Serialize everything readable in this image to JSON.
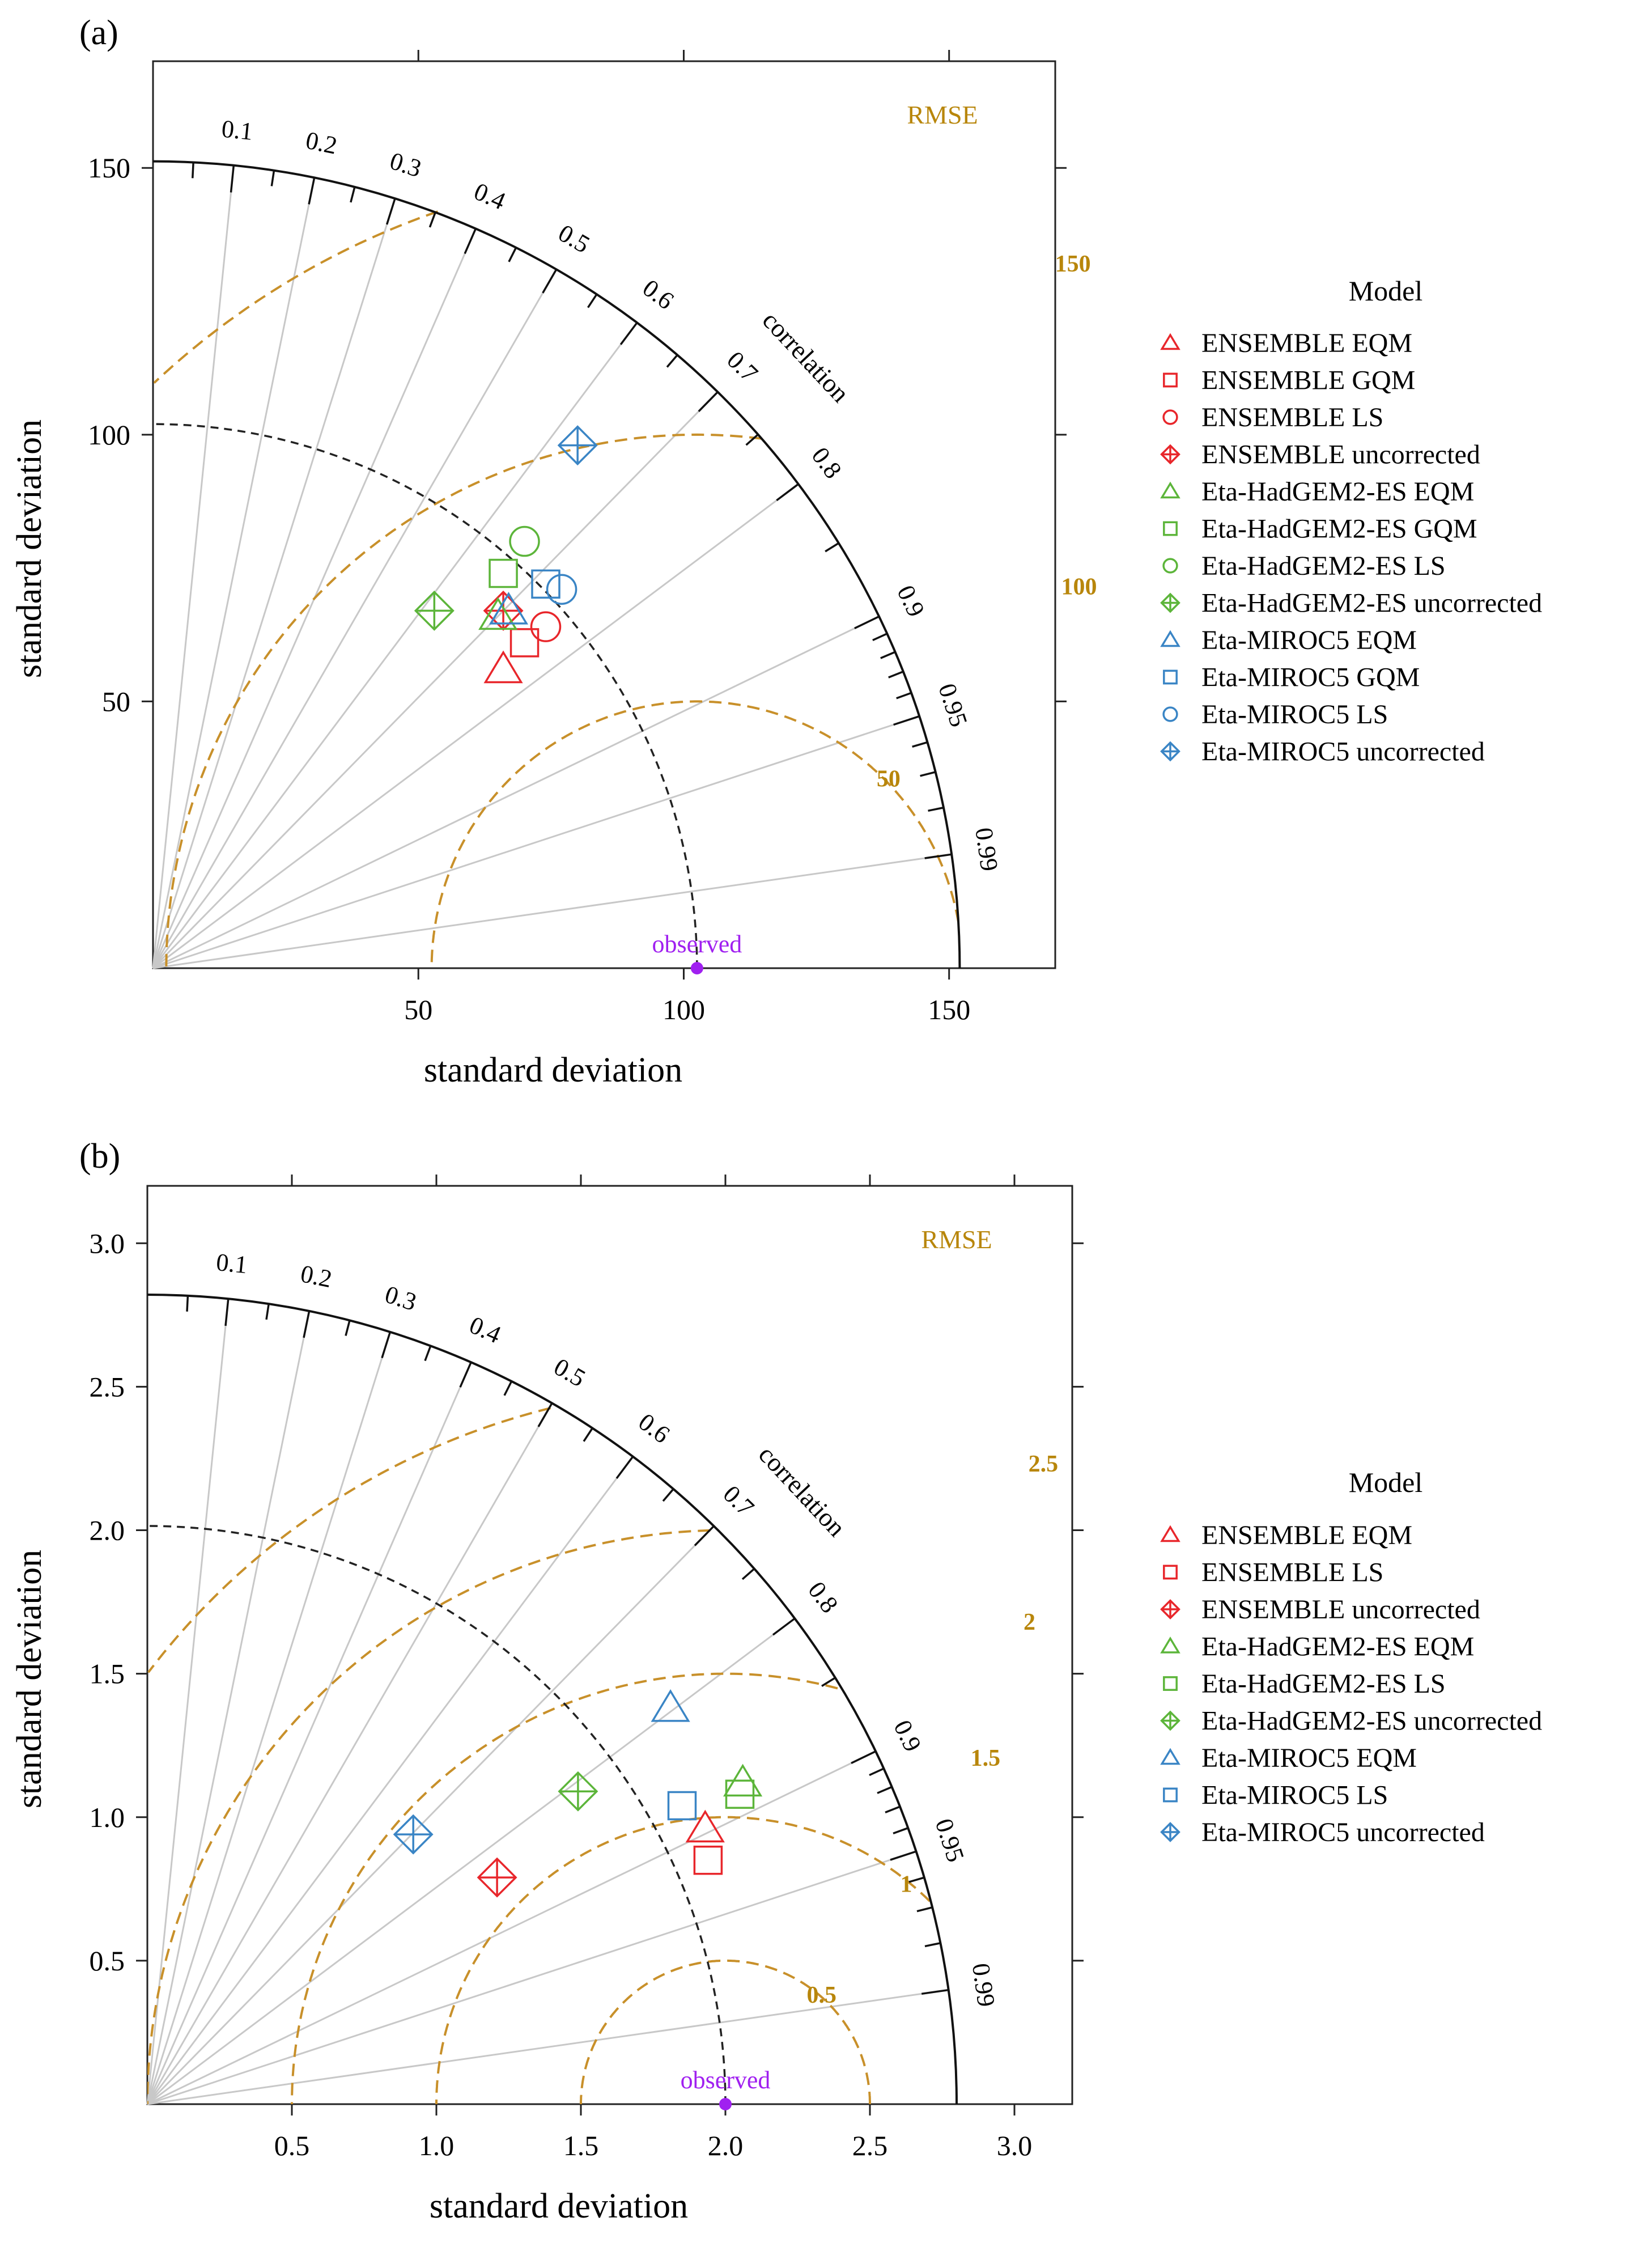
{
  "chart_data": [
    {
      "type": "scatter",
      "subtype": "taylor-diagram",
      "panel_label": "(a)",
      "xlabel": "standard deviation",
      "ylabel": "standard deviation",
      "axis_range": [
        0,
        170
      ],
      "ticks": [
        50,
        100,
        150
      ],
      "tick_labels": [
        "50",
        "100",
        "150"
      ],
      "max_sd_arc": 152,
      "correlation_title": "correlation",
      "correlations": [
        0.1,
        0.2,
        0.3,
        0.4,
        0.5,
        0.6,
        0.7,
        0.8,
        0.9,
        0.95,
        0.99
      ],
      "correlation_labels": [
        "0.1",
        "0.2",
        "0.3",
        "0.4",
        "0.5",
        "0.6",
        "0.7",
        "0.8",
        "0.9",
        "0.95",
        "0.99"
      ],
      "rmse_label": "RMSE",
      "rmse_contours": [
        50,
        100,
        150
      ],
      "rmse_labels": [
        "50",
        "100",
        "150"
      ],
      "observed": {
        "label": "observed",
        "sd": 102.5
      },
      "legend_title": "Model",
      "legend_placement": "right",
      "series": [
        {
          "name": "ENSEMBLE EQM",
          "marker": "triangle",
          "color": "#e8262b",
          "x": 66,
          "y": 56
        },
        {
          "name": "ENSEMBLE GQM",
          "marker": "square",
          "color": "#e8262b",
          "x": 70,
          "y": 61
        },
        {
          "name": "ENSEMBLE LS",
          "marker": "circle",
          "color": "#e8262b",
          "x": 74,
          "y": 64
        },
        {
          "name": "ENSEMBLE uncorrected",
          "marker": "diamond-plus",
          "color": "#e8262b",
          "x": 66,
          "y": 67
        },
        {
          "name": "Eta-HadGEM2-ES EQM",
          "marker": "triangle",
          "color": "#5cb53a",
          "x": 65,
          "y": 66
        },
        {
          "name": "Eta-HadGEM2-ES GQM",
          "marker": "square",
          "color": "#5cb53a",
          "x": 66,
          "y": 74
        },
        {
          "name": "Eta-HadGEM2-ES LS",
          "marker": "circle",
          "color": "#5cb53a",
          "x": 70,
          "y": 80
        },
        {
          "name": "Eta-HadGEM2-ES uncorrected",
          "marker": "diamond-plus",
          "color": "#5cb53a",
          "x": 53,
          "y": 67
        },
        {
          "name": "Eta-MIROC5 EQM",
          "marker": "triangle",
          "color": "#3a85c5",
          "x": 67,
          "y": 67
        },
        {
          "name": "Eta-MIROC5 GQM",
          "marker": "square",
          "color": "#3a85c5",
          "x": 74,
          "y": 72
        },
        {
          "name": "Eta-MIROC5 LS",
          "marker": "circle",
          "color": "#3a85c5",
          "x": 77,
          "y": 71
        },
        {
          "name": "Eta-MIROC5 uncorrected",
          "marker": "diamond-plus",
          "color": "#3a85c5",
          "x": 80,
          "y": 98
        }
      ]
    },
    {
      "type": "scatter",
      "subtype": "taylor-diagram",
      "panel_label": "(b)",
      "xlabel": "standard deviation",
      "ylabel": "standard deviation",
      "axis_range": [
        0,
        3.2
      ],
      "ticks": [
        0.5,
        1.0,
        1.5,
        2.0,
        2.5,
        3.0
      ],
      "tick_labels": [
        "0.5",
        "1.0",
        "1.5",
        "2.0",
        "2.5",
        "3.0"
      ],
      "max_sd_arc": 2.8,
      "correlation_title": "correlation",
      "correlations": [
        0.1,
        0.2,
        0.3,
        0.4,
        0.5,
        0.6,
        0.7,
        0.8,
        0.9,
        0.95,
        0.99
      ],
      "correlation_labels": [
        "0.1",
        "0.2",
        "0.3",
        "0.4",
        "0.5",
        "0.6",
        "0.7",
        "0.8",
        "0.9",
        "0.95",
        "0.99"
      ],
      "rmse_label": "RMSE",
      "rmse_contours": [
        0.5,
        1.0,
        1.5,
        2.0,
        2.5
      ],
      "rmse_labels": [
        "0.5",
        "1",
        "1.5",
        "2",
        "2.5"
      ],
      "observed": {
        "label": "observed",
        "sd": 2.0
      },
      "legend_title": "Model",
      "legend_placement": "right",
      "series": [
        {
          "name": "ENSEMBLE EQM",
          "marker": "triangle",
          "color": "#e8262b",
          "x": 1.93,
          "y": 0.96
        },
        {
          "name": "ENSEMBLE LS",
          "marker": "square",
          "color": "#e8262b",
          "x": 1.94,
          "y": 0.85
        },
        {
          "name": "ENSEMBLE uncorrected",
          "marker": "diamond-plus",
          "color": "#e8262b",
          "x": 1.21,
          "y": 0.79
        },
        {
          "name": "Eta-HadGEM2-ES EQM",
          "marker": "triangle",
          "color": "#5cb53a",
          "x": 2.06,
          "y": 1.12
        },
        {
          "name": "Eta-HadGEM2-ES LS",
          "marker": "square",
          "color": "#5cb53a",
          "x": 2.05,
          "y": 1.08
        },
        {
          "name": "Eta-HadGEM2-ES uncorrected",
          "marker": "diamond-plus",
          "color": "#5cb53a",
          "x": 1.49,
          "y": 1.09
        },
        {
          "name": "Eta-MIROC5 EQM",
          "marker": "triangle",
          "color": "#3a85c5",
          "x": 1.81,
          "y": 1.38
        },
        {
          "name": "Eta-MIROC5 LS",
          "marker": "square",
          "color": "#3a85c5",
          "x": 1.85,
          "y": 1.04
        },
        {
          "name": "Eta-MIROC5 uncorrected",
          "marker": "diamond-plus",
          "color": "#3a85c5",
          "x": 0.92,
          "y": 0.94
        }
      ]
    }
  ],
  "colors": {
    "rmse": "#c8902a",
    "rmse_label": "#b8860b",
    "observed": "#a020f0",
    "gridline": "#c8c8c8",
    "axis": "#222222"
  }
}
